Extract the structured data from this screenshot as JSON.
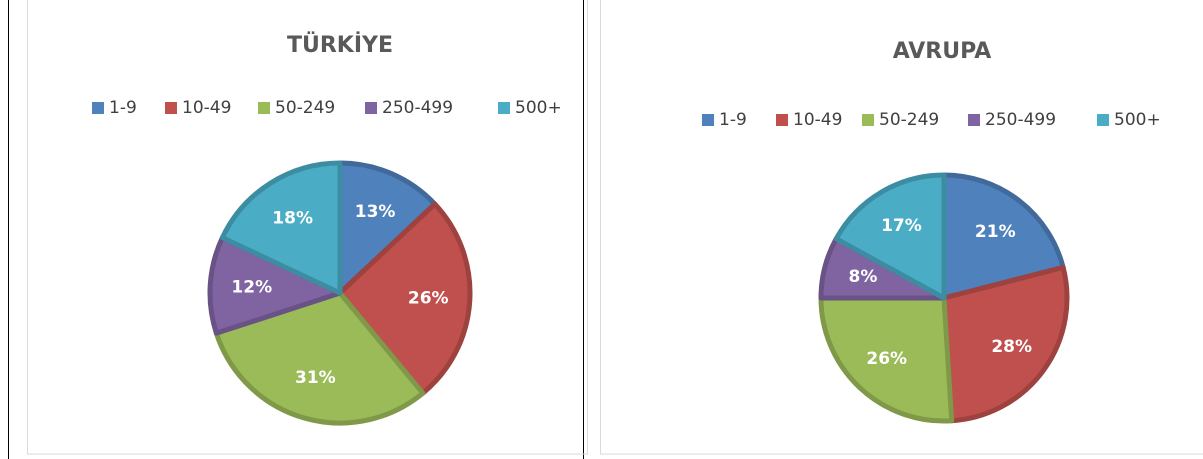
{
  "chart_data": [
    {
      "type": "pie",
      "title": "TÜRKİYE",
      "categories": [
        "1-9",
        "10-49",
        "50-249",
        "250-499",
        "500+"
      ],
      "values": [
        13,
        26,
        31,
        12,
        18
      ],
      "value_labels": [
        "13%",
        "26%",
        "31%",
        "12%",
        "18%"
      ],
      "colors": [
        "#4f81bd",
        "#c0504d",
        "#9bbb59",
        "#8064a2",
        "#4bacc6"
      ],
      "legend": "top"
    },
    {
      "type": "pie",
      "title": "AVRUPA",
      "categories": [
        "1-9",
        "10-49",
        "50-249",
        "250-499",
        "500+"
      ],
      "values": [
        21,
        28,
        26,
        8,
        17
      ],
      "value_labels": [
        "21%",
        "28%",
        "26%",
        "8%",
        "17%"
      ],
      "colors": [
        "#4f81bd",
        "#c0504d",
        "#9bbb59",
        "#8064a2",
        "#4bacc6"
      ],
      "legend": "top"
    }
  ]
}
